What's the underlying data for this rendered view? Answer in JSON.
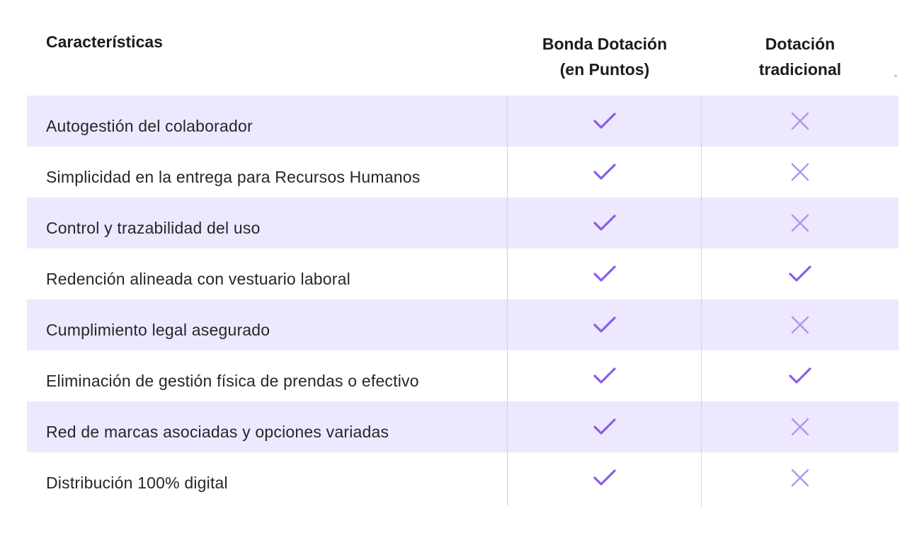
{
  "header": {
    "feature_label": "Características",
    "col1_label": "Bonda Dotación\n(en Puntos)",
    "col2_label": "Dotación\ntradicional"
  },
  "colors": {
    "check": "#8a5ce6",
    "cross": "#b795f0",
    "shaded_row": "#ede8fd",
    "divider": "#d4cfe0"
  },
  "rows": [
    {
      "label": "Autogestión del colaborador",
      "bonda": "check-icon",
      "tradicional": "cross-icon"
    },
    {
      "label": "Simplicidad en la entrega para Recursos Humanos",
      "bonda": "check-icon",
      "tradicional": "cross-icon"
    },
    {
      "label": "Control y trazabilidad del uso",
      "bonda": "check-icon",
      "tradicional": "cross-icon"
    },
    {
      "label": "Redención alineada con vestuario laboral",
      "bonda": "check-icon",
      "tradicional": "check-icon"
    },
    {
      "label": "Cumplimiento legal asegurado",
      "bonda": "check-icon",
      "tradicional": "cross-icon"
    },
    {
      "label": "Eliminación de gestión física de prendas o efectivo",
      "bonda": "check-icon",
      "tradicional": "check-icon"
    },
    {
      "label": "Red de marcas asociadas y opciones variadas",
      "bonda": "check-icon",
      "tradicional": "cross-icon"
    },
    {
      "label": "Distribución 100% digital",
      "bonda": "check-icon",
      "tradicional": "cross-icon"
    }
  ]
}
